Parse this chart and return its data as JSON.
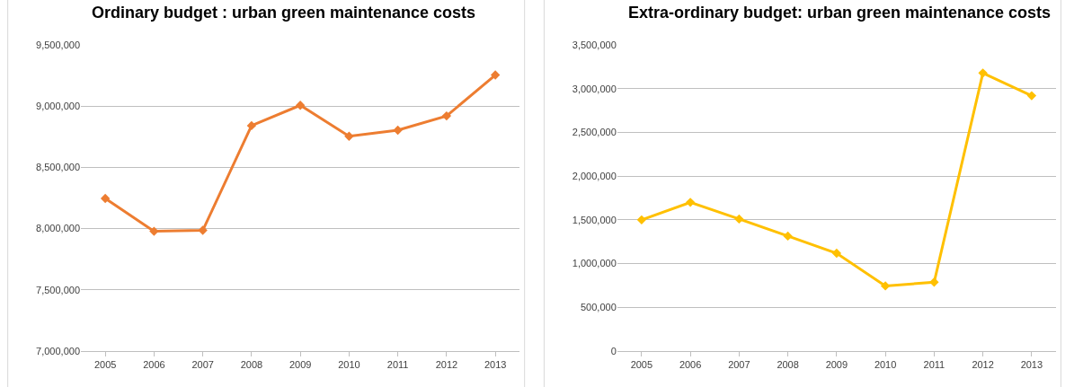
{
  "chart_data": [
    {
      "type": "line",
      "title": "Ordinary budget : urban green maintenance costs",
      "categories": [
        "2005",
        "2006",
        "2007",
        "2008",
        "2009",
        "2010",
        "2011",
        "2012",
        "2013"
      ],
      "series": [
        {
          "color": "#ed7d31",
          "values": [
            8246000,
            7978000,
            7986000,
            8841000,
            9007000,
            8754000,
            8804000,
            8920000,
            9254000
          ]
        }
      ],
      "ylim": [
        7000000,
        9500000
      ],
      "yticks": [
        {
          "value": 7000000,
          "label": "7,000,000"
        },
        {
          "value": 7500000,
          "label": "7,500,000"
        },
        {
          "value": 8000000,
          "label": "8,000,000"
        },
        {
          "value": 8500000,
          "label": "8,500,000"
        },
        {
          "value": 9000000,
          "label": "9,000,000"
        },
        {
          "value": 9500000,
          "label": "9,500,000"
        }
      ],
      "grid": "y",
      "marker": "diamond",
      "line_style": "solid"
    },
    {
      "type": "line",
      "title": "Extra-ordinary budget: urban green maintenance costs",
      "categories": [
        "2005",
        "2006",
        "2007",
        "2008",
        "2009",
        "2010",
        "2011",
        "2012",
        "2013"
      ],
      "series": [
        {
          "color": "#ffc000",
          "values": [
            1500000,
            1700000,
            1510000,
            1315000,
            1118000,
            745000,
            787000,
            3178000,
            2919000
          ]
        }
      ],
      "ylim": [
        0,
        3500000
      ],
      "yticks": [
        {
          "value": 0,
          "label": "0"
        },
        {
          "value": 500000,
          "label": "500,000"
        },
        {
          "value": 1000000,
          "label": "1,000,000"
        },
        {
          "value": 1500000,
          "label": "1,500,000"
        },
        {
          "value": 2000000,
          "label": "2,000,000"
        },
        {
          "value": 2500000,
          "label": "2,500,000"
        },
        {
          "value": 3000000,
          "label": "3,000,000"
        },
        {
          "value": 3500000,
          "label": "3,500,000"
        }
      ],
      "grid": "y",
      "marker": "diamond",
      "line_style": "solid"
    }
  ]
}
